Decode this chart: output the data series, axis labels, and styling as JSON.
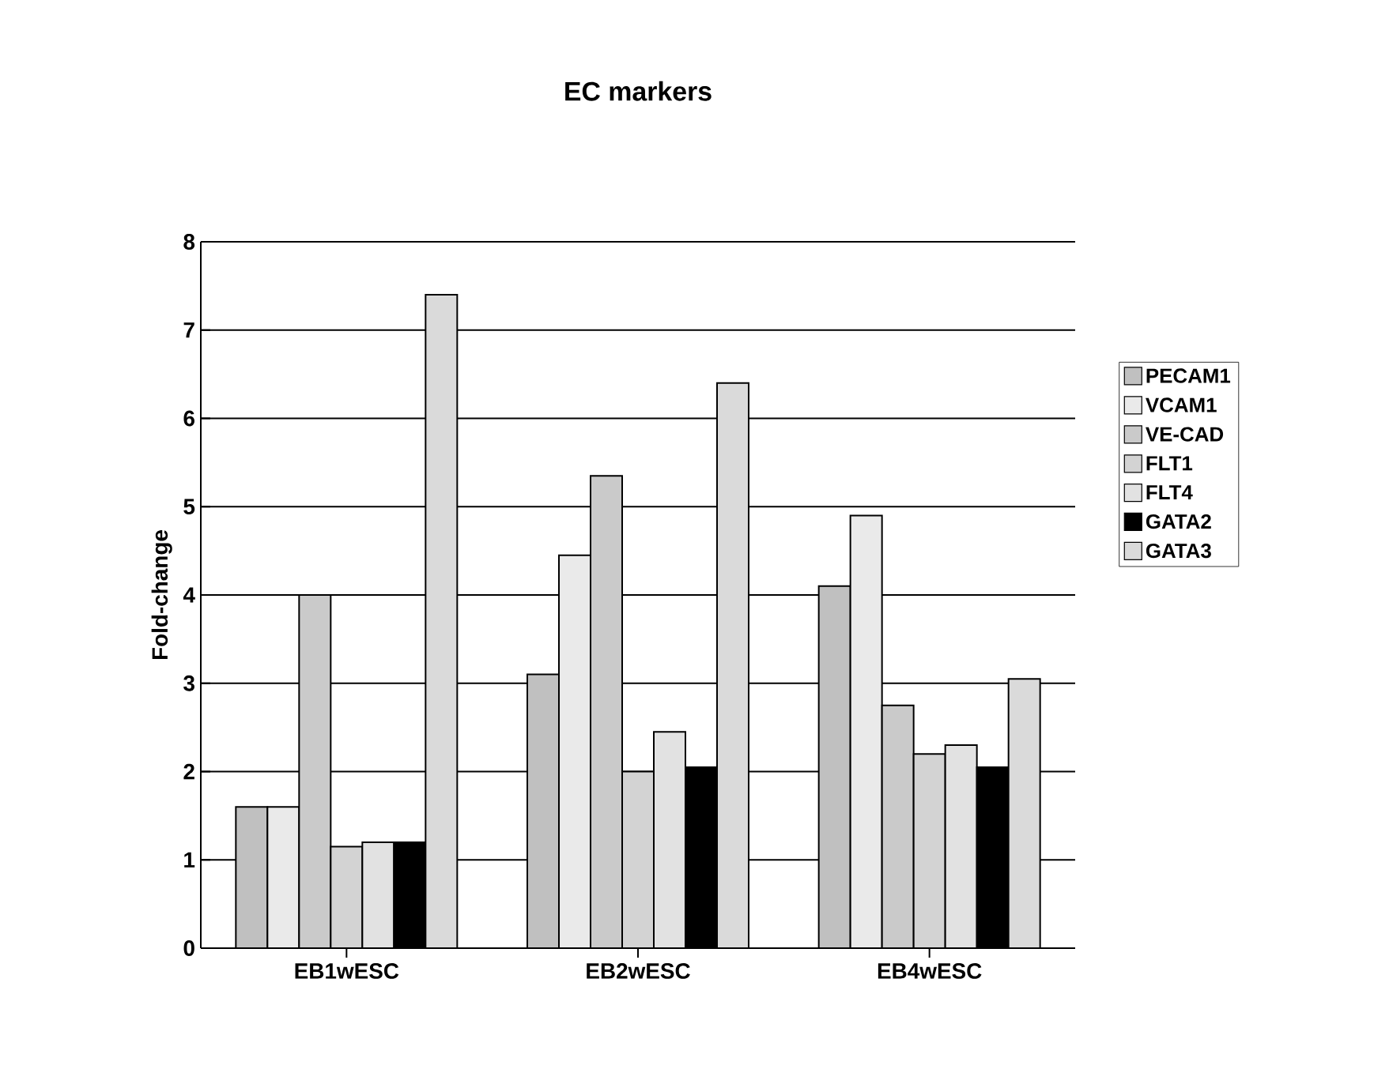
{
  "chart_data": {
    "type": "bar",
    "title": "EC markers",
    "ylabel": "Fold-change",
    "categories": [
      "EB1wESC",
      "EB2wESC",
      "EB4wESC"
    ],
    "series": [
      {
        "name": "PECAM1",
        "color": "#c0c0c0",
        "values": [
          1.6,
          3.1,
          4.1
        ]
      },
      {
        "name": "VCAM1",
        "color": "#eaeaea",
        "values": [
          1.6,
          4.45,
          4.9
        ]
      },
      {
        "name": "VE-CAD",
        "color": "#cacaca",
        "values": [
          4.0,
          5.35,
          2.75
        ]
      },
      {
        "name": "FLT1",
        "color": "#d3d3d3",
        "values": [
          1.15,
          2.0,
          2.2
        ]
      },
      {
        "name": "FLT4",
        "color": "#e2e2e2",
        "values": [
          1.2,
          2.45,
          2.3
        ]
      },
      {
        "name": "GATA2",
        "color": "#000000",
        "values": [
          1.2,
          2.05,
          2.05
        ]
      },
      {
        "name": "GATA3",
        "color": "#dadada",
        "values": [
          7.4,
          6.4,
          3.05
        ]
      }
    ],
    "ylim": [
      0,
      8
    ],
    "yticks": [
      0,
      1,
      2,
      3,
      4,
      5,
      6,
      7,
      8
    ],
    "grid": "y",
    "legend": "right"
  }
}
